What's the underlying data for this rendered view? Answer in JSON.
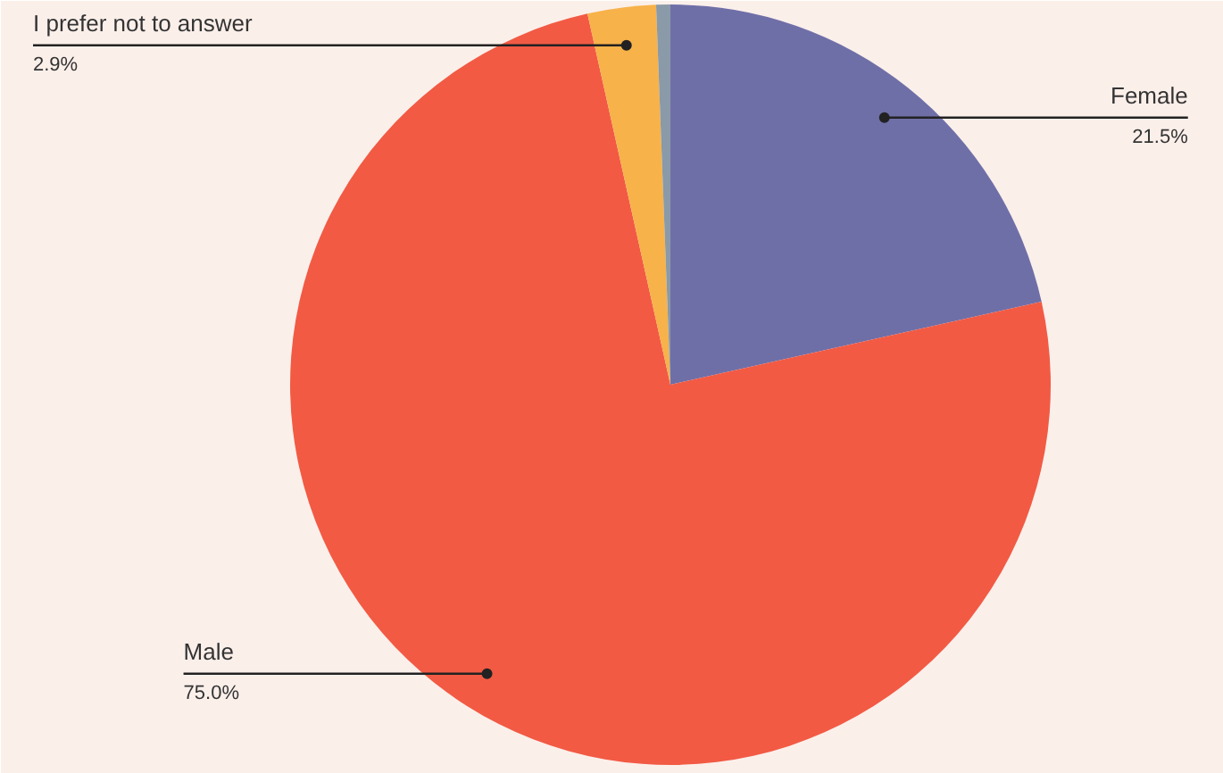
{
  "chart_data": {
    "type": "pie",
    "categories": [
      "Female",
      "Male",
      "I prefer not to answer",
      null
    ],
    "values": [
      21.5,
      75.0,
      2.9,
      0.6
    ],
    "colors": [
      "#6f6fa8",
      "#f25a44",
      "#f7b24a",
      "#8a9aa8"
    ],
    "value_labels": [
      "21.5%",
      "75.0%",
      "2.9%",
      null
    ]
  }
}
